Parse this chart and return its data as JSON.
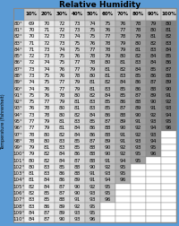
{
  "title": "Relative Humidity",
  "ylabel": "Temperature (Fahrenheit)",
  "col_labels": [
    "10%",
    "20%",
    "30%",
    "40%",
    "50%",
    "60%",
    "70%",
    "80%",
    "90%",
    "100%"
  ],
  "row_labels": [
    "80°",
    "81°",
    "82°",
    "83°",
    "84°",
    "85°",
    "86°",
    "87°",
    "88°",
    "89°",
    "90°",
    "91°",
    "92°",
    "93°",
    "94°",
    "95°",
    "96°",
    "97°",
    "98°",
    "99°",
    "100°",
    "101°",
    "102°",
    "103°",
    "104°",
    "105°",
    "106°",
    "107°",
    "108°",
    "109°",
    "110°"
  ],
  "table_data": [
    [
      69,
      70,
      72,
      73,
      74,
      75,
      76,
      78,
      79,
      80
    ],
    [
      70,
      71,
      72,
      73,
      75,
      76,
      77,
      78,
      80,
      81
    ],
    [
      70,
      72,
      73,
      74,
      75,
      77,
      78,
      79,
      81,
      82
    ],
    [
      71,
      72,
      73,
      75,
      76,
      78,
      79,
      80,
      82,
      83
    ],
    [
      71,
      73,
      74,
      75,
      77,
      78,
      79,
      81,
      83,
      84
    ],
    [
      72,
      73,
      75,
      76,
      78,
      79,
      80,
      82,
      84,
      85
    ],
    [
      72,
      74,
      75,
      77,
      78,
      80,
      81,
      83,
      84,
      86
    ],
    [
      73,
      74,
      76,
      77,
      79,
      81,
      82,
      84,
      85,
      87
    ],
    [
      73,
      75,
      76,
      78,
      80,
      81,
      83,
      85,
      86,
      88
    ],
    [
      74,
      75,
      77,
      79,
      81,
      82,
      84,
      86,
      87,
      89
    ],
    [
      74,
      76,
      77,
      79,
      81,
      83,
      85,
      86,
      88,
      90
    ],
    [
      75,
      76,
      78,
      80,
      82,
      84,
      85,
      87,
      89,
      91
    ],
    [
      75,
      77,
      79,
      81,
      83,
      85,
      86,
      88,
      90,
      92
    ],
    [
      76,
      78,
      80,
      81,
      83,
      85,
      87,
      89,
      91,
      93
    ],
    [
      73,
      78,
      80,
      82,
      84,
      86,
      88,
      90,
      92,
      94
    ],
    [
      77,
      79,
      81,
      83,
      85,
      87,
      89,
      91,
      93,
      95
    ],
    [
      77,
      79,
      81,
      84,
      86,
      88,
      90,
      92,
      94,
      96
    ],
    [
      78,
      80,
      82,
      84,
      86,
      88,
      91,
      92,
      93,
      null
    ],
    [
      78,
      80,
      83,
      85,
      87,
      89,
      91,
      93,
      94,
      null
    ],
    [
      79,
      81,
      83,
      85,
      88,
      90,
      92,
      93,
      95,
      null
    ],
    [
      79,
      82,
      84,
      86,
      88,
      90,
      92,
      95,
      96,
      null
    ],
    [
      80,
      82,
      84,
      87,
      88,
      91,
      94,
      95,
      null,
      null
    ],
    [
      80,
      83,
      85,
      88,
      90,
      92,
      95,
      null,
      null,
      null
    ],
    [
      81,
      83,
      86,
      88,
      91,
      93,
      95,
      null,
      null,
      null
    ],
    [
      81,
      84,
      86,
      89,
      91,
      94,
      96,
      null,
      null,
      null
    ],
    [
      82,
      84,
      87,
      90,
      92,
      95,
      null,
      null,
      null,
      null
    ],
    [
      82,
      85,
      87,
      90,
      93,
      95,
      null,
      null,
      null,
      null
    ],
    [
      83,
      85,
      88,
      91,
      93,
      96,
      null,
      null,
      null,
      null
    ],
    [
      83,
      86,
      89,
      92,
      95,
      null,
      null,
      null,
      null,
      null
    ],
    [
      84,
      87,
      89,
      93,
      95,
      null,
      null,
      null,
      null,
      null
    ],
    [
      84,
      87,
      90,
      93,
      96,
      null,
      null,
      null,
      null,
      null
    ]
  ],
  "col_colors": [
    "#f0f0f0",
    "#e8e8e8",
    "#e0e0e0",
    "#d8d8d8",
    "#cccccc",
    "#c0c0c0",
    "#b0b0b0",
    "#a0a0a0",
    "#909090",
    "#808080"
  ],
  "header_color": "#c8c8c8",
  "rowlabel_color": "#d8d8d8",
  "null_color": "#ffffff",
  "bg_color": "#5b9bd5",
  "border_color": "#888888",
  "title_fontsize": 6.5,
  "label_fontsize": 4.0,
  "cell_fontsize": 4.2
}
